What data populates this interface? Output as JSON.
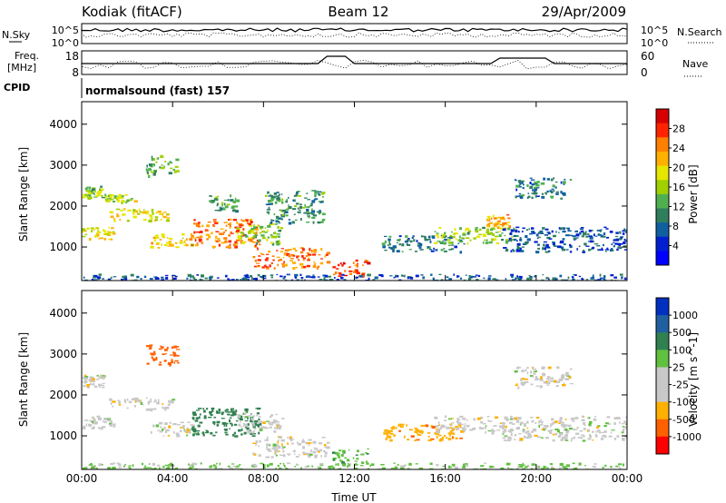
{
  "header": {
    "station": "Kodiak (fitACF)",
    "beam": "Beam 12",
    "date": "29/Apr/2009"
  },
  "noise_panel": {
    "left_label": "N.Sky",
    "right_label": "N.Search",
    "left_ticks": [
      "10^5",
      "10^0"
    ],
    "right_ticks": [
      "10^5",
      "10^0"
    ]
  },
  "freq_panel": {
    "left_label_1": "Freq.",
    "left_label_2": "[MHz]",
    "right_label": "Nave",
    "left_ticks": [
      "18",
      "8"
    ],
    "right_ticks": [
      "60",
      "0"
    ]
  },
  "cpid": {
    "label": "CPID",
    "value": "normalsound (fast) 157"
  },
  "chart_data": [
    {
      "type": "heatmap",
      "title": "",
      "xlabel": "",
      "ylabel": "Slant Range [km]",
      "x_ticks": [
        "00:00",
        "04:00",
        "08:00",
        "12:00",
        "16:00",
        "20:00",
        "00:00"
      ],
      "xlim_hours": [
        0,
        24
      ],
      "ylim": [
        180,
        4550
      ],
      "y_ticks": [
        1000,
        2000,
        3000,
        4000
      ],
      "colorbar": {
        "label": "Power [dB]",
        "ticks": [
          "28",
          "24",
          "20",
          "16",
          "12",
          "8",
          "4"
        ],
        "colors": [
          "#d70000",
          "#ff2400",
          "#ff8000",
          "#ffb000",
          "#e6e600",
          "#a0d000",
          "#50b050",
          "#2f7f5f",
          "#1060a0",
          "#0020d0",
          "#0000ff"
        ]
      },
      "regions": [
        {
          "t0": 0.0,
          "t1": 1.4,
          "r0": 1200,
          "r1": 1500,
          "value": 18
        },
        {
          "t0": 0.0,
          "t1": 0.9,
          "r0": 2200,
          "r1": 2500,
          "value": 14
        },
        {
          "t0": 1.0,
          "t1": 2.3,
          "r0": 2100,
          "r1": 2300,
          "value": 16
        },
        {
          "t0": 1.2,
          "t1": 4.0,
          "r0": 1650,
          "r1": 1950,
          "value": 18
        },
        {
          "t0": 2.8,
          "t1": 4.2,
          "r0": 2750,
          "r1": 3250,
          "value": 12
        },
        {
          "t0": 3.0,
          "t1": 5.0,
          "r0": 1000,
          "r1": 1350,
          "value": 20
        },
        {
          "t0": 4.8,
          "t1": 7.8,
          "r0": 1000,
          "r1": 1700,
          "value": 24
        },
        {
          "t0": 5.5,
          "t1": 6.8,
          "r0": 1900,
          "r1": 2300,
          "value": 10
        },
        {
          "t0": 6.8,
          "t1": 8.8,
          "r0": 1100,
          "r1": 1600,
          "value": 14
        },
        {
          "t0": 7.5,
          "t1": 10.8,
          "r0": 500,
          "r1": 1000,
          "value": 24
        },
        {
          "t0": 8.0,
          "t1": 10.6,
          "r0": 1600,
          "r1": 2400,
          "value": 10
        },
        {
          "t0": 11.0,
          "t1": 12.6,
          "r0": 300,
          "r1": 700,
          "value": 26
        },
        {
          "t0": 13.2,
          "t1": 16.8,
          "r0": 900,
          "r1": 1300,
          "value": 8
        },
        {
          "t0": 15.5,
          "t1": 19.0,
          "r0": 1100,
          "r1": 1500,
          "value": 14
        },
        {
          "t0": 17.8,
          "t1": 18.8,
          "r0": 1500,
          "r1": 1800,
          "value": 22
        },
        {
          "t0": 18.5,
          "t1": 24.0,
          "r0": 900,
          "r1": 1500,
          "value": 6
        },
        {
          "t0": 19.0,
          "t1": 21.5,
          "r0": 2200,
          "r1": 2700,
          "value": 8
        },
        {
          "t0": 0.0,
          "t1": 24.0,
          "r0": 180,
          "r1": 350,
          "value": 6
        }
      ]
    },
    {
      "type": "heatmap",
      "title": "",
      "xlabel": "Time UT",
      "ylabel": "Slant Range [km]",
      "x_ticks": [
        "00:00",
        "04:00",
        "08:00",
        "12:00",
        "16:00",
        "20:00",
        "00:00"
      ],
      "xlim_hours": [
        0,
        24
      ],
      "ylim": [
        180,
        4550
      ],
      "y_ticks": [
        1000,
        2000,
        3000,
        4000
      ],
      "colorbar": {
        "label": "Velocity [m s^-1]",
        "ticks": [
          "1000",
          "500",
          "100",
          "25",
          "-25",
          "-100",
          "-500",
          "-1000"
        ],
        "colors": [
          "#0030c0",
          "#2060a0",
          "#308050",
          "#60c040",
          "#c8c8c8",
          "#c8c8c8",
          "#ffb000",
          "#ff6000",
          "#ff0000"
        ]
      },
      "regions": [
        {
          "t0": 0.0,
          "t1": 1.4,
          "r0": 1200,
          "r1": 1500,
          "value": 0
        },
        {
          "t0": 0.0,
          "t1": 0.9,
          "r0": 2200,
          "r1": 2500,
          "value": 0
        },
        {
          "t0": 1.2,
          "t1": 4.0,
          "r0": 1650,
          "r1": 1950,
          "value": 0
        },
        {
          "t0": 2.8,
          "t1": 4.2,
          "r0": 2750,
          "r1": 3250,
          "value": -300
        },
        {
          "t0": 3.0,
          "t1": 5.0,
          "r0": 1000,
          "r1": 1350,
          "value": 0
        },
        {
          "t0": 4.8,
          "t1": 7.8,
          "r0": 1000,
          "r1": 1700,
          "value": 150
        },
        {
          "t0": 6.8,
          "t1": 8.8,
          "r0": 1100,
          "r1": 1600,
          "value": 0
        },
        {
          "t0": 7.5,
          "t1": 10.8,
          "r0": 500,
          "r1": 1000,
          "value": 0
        },
        {
          "t0": 11.0,
          "t1": 12.6,
          "r0": 300,
          "r1": 700,
          "value": 80
        },
        {
          "t0": 13.2,
          "t1": 16.8,
          "r0": 900,
          "r1": 1300,
          "value": -80
        },
        {
          "t0": 15.5,
          "t1": 19.0,
          "r0": 1100,
          "r1": 1500,
          "value": 0
        },
        {
          "t0": 18.5,
          "t1": 24.0,
          "r0": 900,
          "r1": 1500,
          "value": 0
        },
        {
          "t0": 19.0,
          "t1": 21.5,
          "r0": 2200,
          "r1": 2700,
          "value": 0
        },
        {
          "t0": 0.0,
          "t1": 24.0,
          "r0": 180,
          "r1": 350,
          "value": 40
        }
      ]
    }
  ]
}
